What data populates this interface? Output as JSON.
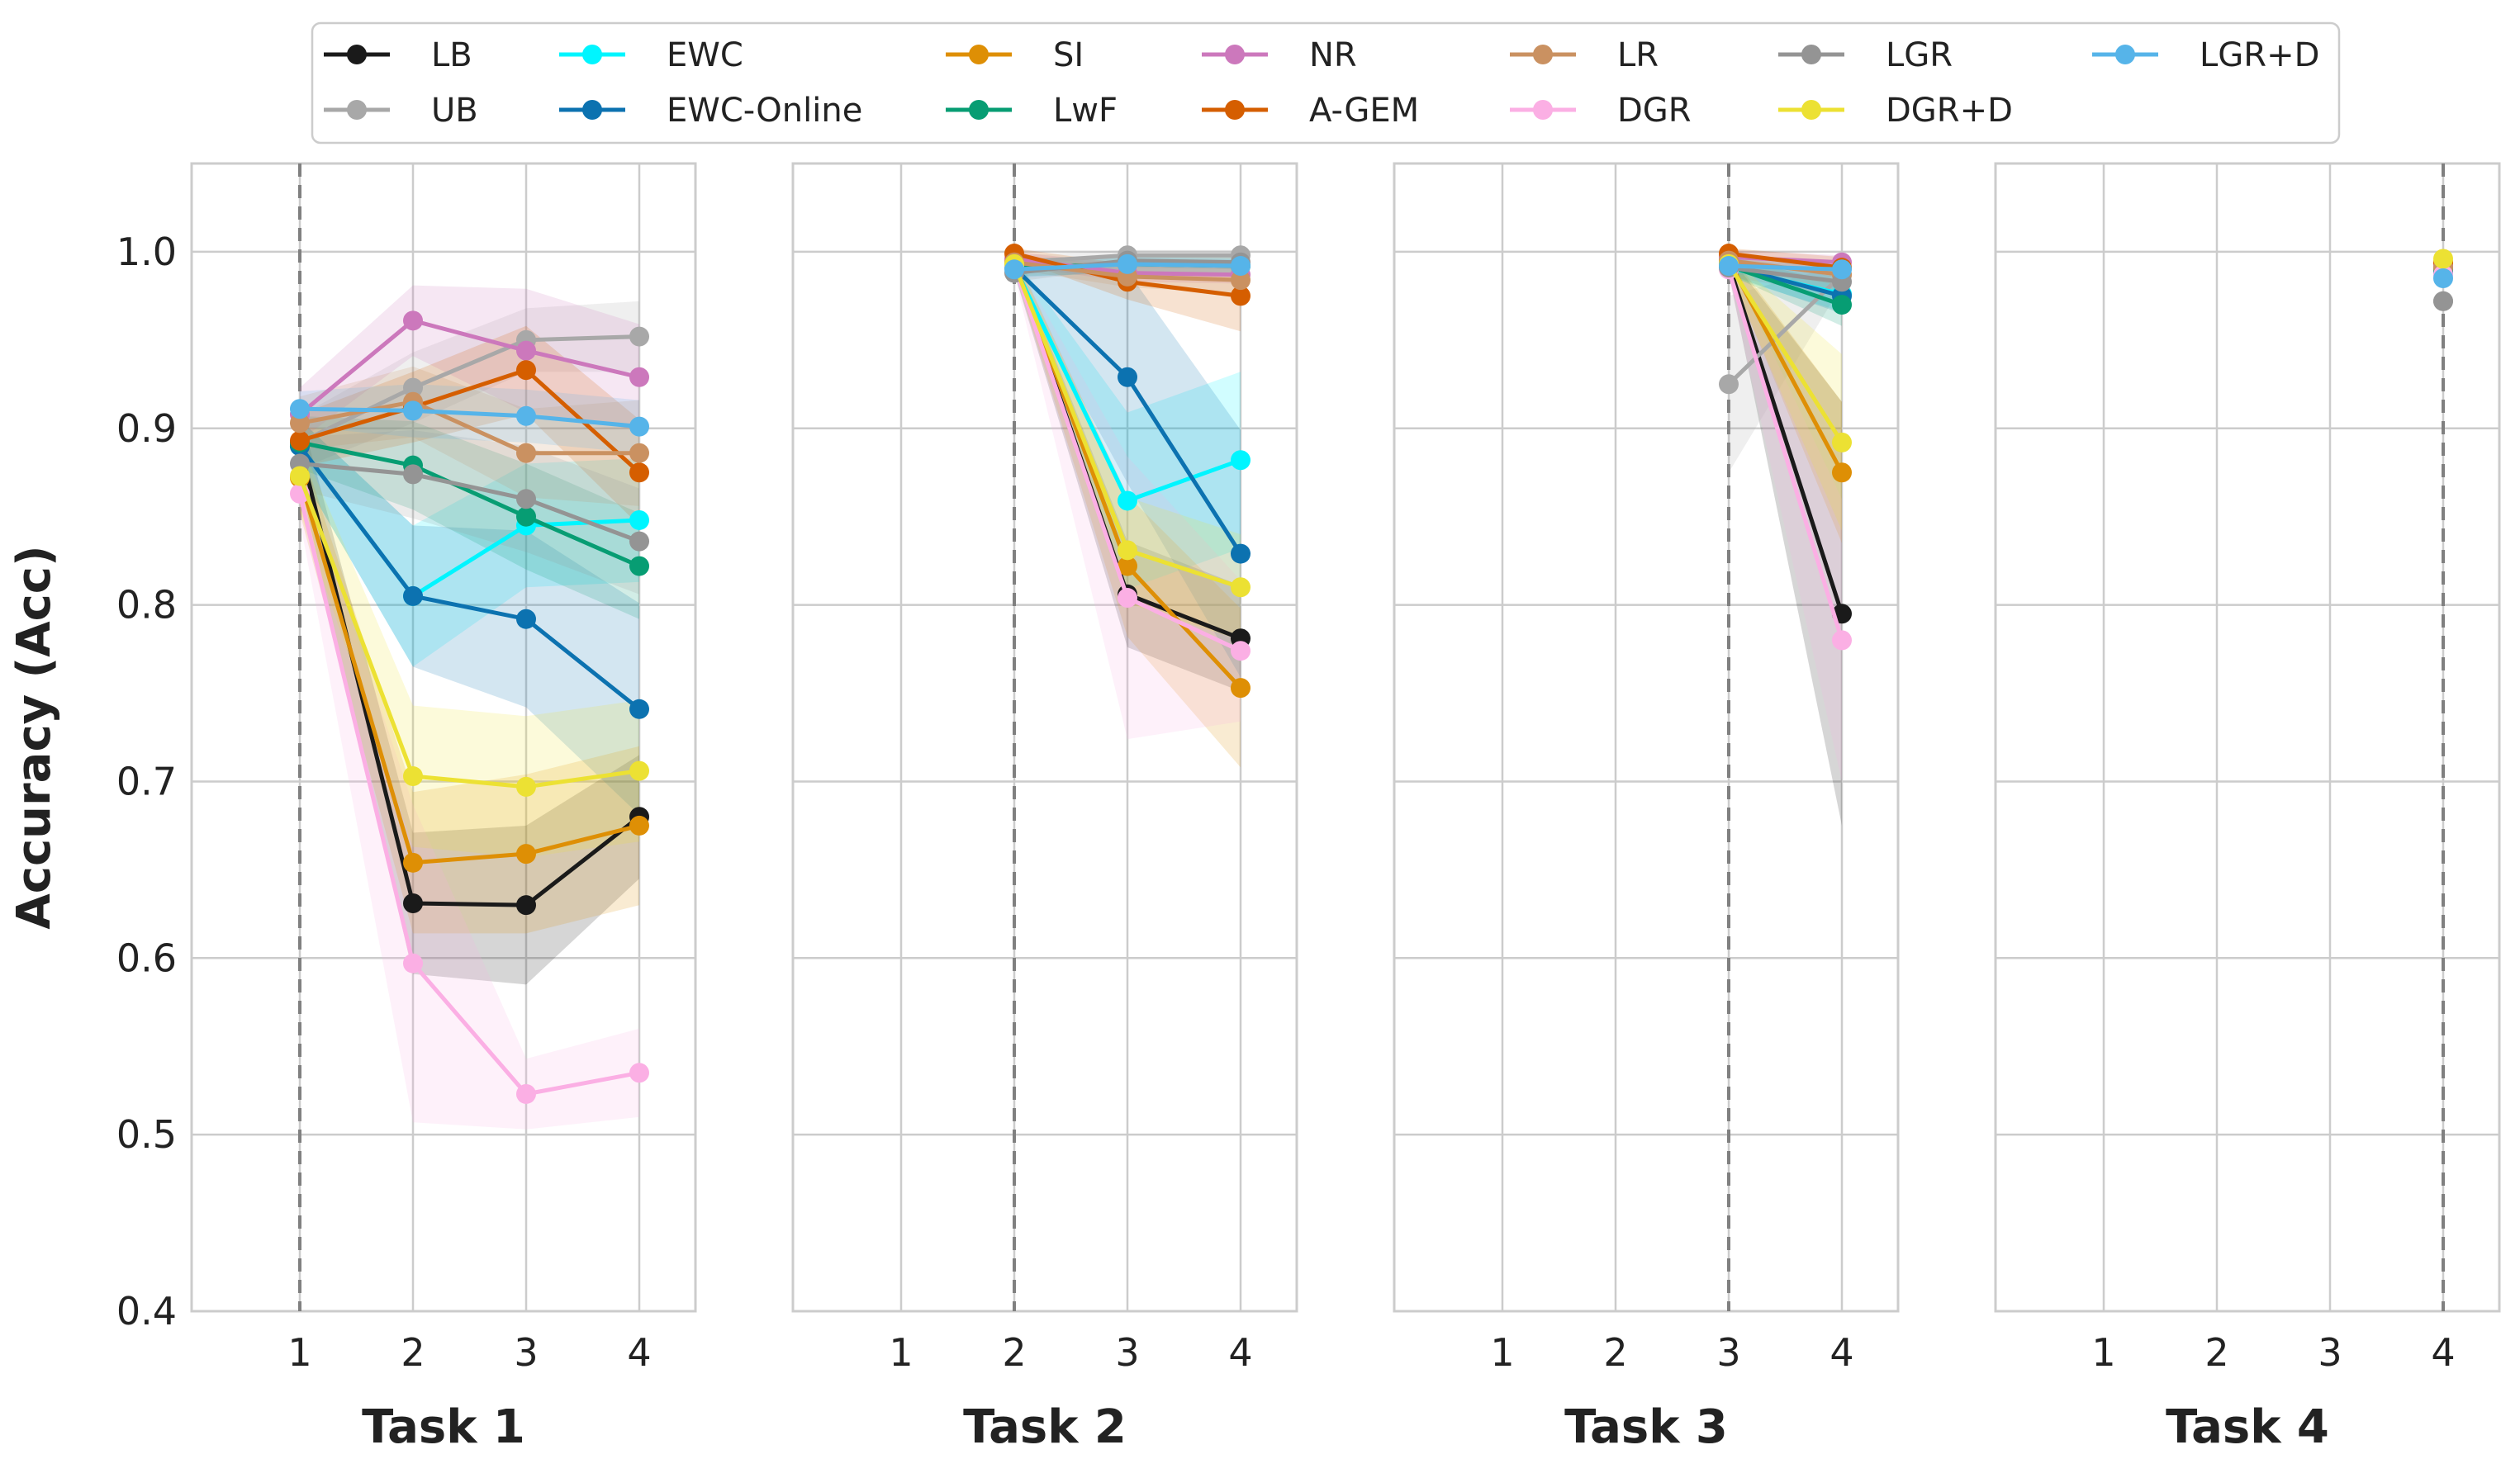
{
  "chart_data": {
    "type": "line",
    "ylabel": "Accuracy (Acc)",
    "ylim": [
      0.4,
      1.05
    ],
    "yticks": [
      "0.4",
      "0.5",
      "0.6",
      "0.7",
      "0.8",
      "0.9",
      "1.0"
    ],
    "xticks": [
      "1",
      "2",
      "3",
      "4"
    ],
    "grid": true,
    "legend_position": "top",
    "colors": {
      "LB": "#1a1a1a",
      "UB": "#a8a8a8",
      "EWC": "#00f5ff",
      "EWC-Online": "#0c72b0",
      "SI": "#de8f05",
      "LwF": "#079d73",
      "NR": "#cc78bc",
      "A-GEM": "#d55e00",
      "LR": "#ca9161",
      "DGR": "#fbafe4",
      "LGR": "#949494",
      "DGR+D": "#ece133",
      "LGR+D": "#56b4e9"
    },
    "method_order": [
      "LB",
      "UB",
      "EWC",
      "EWC-Online",
      "SI",
      "LwF",
      "NR",
      "A-GEM",
      "LR",
      "DGR",
      "LGR",
      "DGR+D",
      "LGR+D"
    ],
    "panels": [
      {
        "title": "Task 1",
        "start_task": 1,
        "series": [
          {
            "name": "LB",
            "values": [
              0.89,
              0.631,
              0.63,
              0.68
            ],
            "band": [
              0.02,
              0.04,
              0.045,
              0.035
            ]
          },
          {
            "name": "UB",
            "values": [
              0.892,
              0.923,
              0.95,
              0.952
            ],
            "band": [
              0.015,
              0.02,
              0.018,
              0.02
            ]
          },
          {
            "name": "EWC",
            "values": [
              0.89,
              0.805,
              0.845,
              0.848
            ],
            "band": [
              0.015,
              0.04,
              0.035,
              0.035
            ]
          },
          {
            "name": "EWC-Online",
            "values": [
              0.89,
              0.805,
              0.792,
              0.741
            ],
            "band": [
              0.015,
              0.04,
              0.05,
              0.06
            ]
          },
          {
            "name": "SI",
            "values": [
              0.872,
              0.654,
              0.659,
              0.675
            ],
            "band": [
              0.02,
              0.04,
              0.045,
              0.045
            ]
          },
          {
            "name": "LwF",
            "values": [
              0.892,
              0.879,
              0.85,
              0.822
            ],
            "band": [
              0.015,
              0.025,
              0.03,
              0.03
            ]
          },
          {
            "name": "NR",
            "values": [
              0.908,
              0.961,
              0.944,
              0.929
            ],
            "band": [
              0.015,
              0.02,
              0.035,
              0.03
            ]
          },
          {
            "name": "A-GEM",
            "values": [
              0.893,
              0.912,
              0.933,
              0.875
            ],
            "band": [
              0.015,
              0.02,
              0.025,
              0.03
            ]
          },
          {
            "name": "LR",
            "values": [
              0.903,
              0.915,
              0.886,
              0.886
            ],
            "band": [
              0.015,
              0.02,
              0.025,
              0.03
            ]
          },
          {
            "name": "DGR",
            "values": [
              0.863,
              0.597,
              0.523,
              0.535
            ],
            "band": [
              0.015,
              0.09,
              0.02,
              0.025
            ]
          },
          {
            "name": "LGR",
            "values": [
              0.88,
              0.874,
              0.86,
              0.836
            ],
            "band": [
              0.015,
              0.025,
              0.03,
              0.03
            ]
          },
          {
            "name": "DGR+D",
            "values": [
              0.873,
              0.703,
              0.697,
              0.706
            ],
            "band": [
              0.02,
              0.04,
              0.04,
              0.04
            ]
          },
          {
            "name": "LGR+D",
            "values": [
              0.911,
              0.91,
              0.907,
              0.901
            ],
            "band": [
              0.01,
              0.015,
              0.015,
              0.015
            ]
          }
        ]
      },
      {
        "title": "Task 2",
        "start_task": 2,
        "series": [
          {
            "name": "LB",
            "values": [
              0.993,
              0.806,
              0.781
            ],
            "band": [
              0.005,
              0.03,
              0.03
            ]
          },
          {
            "name": "UB",
            "values": [
              0.994,
              0.998,
              0.998
            ],
            "band": [
              0.004,
              0.003,
              0.003
            ]
          },
          {
            "name": "EWC",
            "values": [
              0.992,
              0.859,
              0.882
            ],
            "band": [
              0.005,
              0.05,
              0.05
            ]
          },
          {
            "name": "EWC-Online",
            "values": [
              0.991,
              0.929,
              0.829
            ],
            "band": [
              0.005,
              0.06,
              0.07
            ]
          },
          {
            "name": "SI",
            "values": [
              0.994,
              0.822,
              0.753
            ],
            "band": [
              0.005,
              0.04,
              0.045
            ]
          },
          {
            "name": "LwF",
            "values": [
              0.991,
              0.993,
              0.992
            ],
            "band": [
              0.005,
              0.005,
              0.005
            ]
          },
          {
            "name": "NR",
            "values": [
              0.996,
              0.988,
              0.987
            ],
            "band": [
              0.004,
              0.005,
              0.005
            ]
          },
          {
            "name": "A-GEM",
            "values": [
              0.999,
              0.983,
              0.975
            ],
            "band": [
              0.003,
              0.01,
              0.02
            ]
          },
          {
            "name": "LR",
            "values": [
              0.994,
              0.986,
              0.984
            ],
            "band": [
              0.004,
              0.006,
              0.008
            ]
          },
          {
            "name": "DGR",
            "values": [
              0.992,
              0.804,
              0.774
            ],
            "band": [
              0.005,
              0.08,
              0.04
            ]
          },
          {
            "name": "LGR",
            "values": [
              0.988,
              0.995,
              0.994
            ],
            "band": [
              0.005,
              0.004,
              0.004
            ]
          },
          {
            "name": "DGR+D",
            "values": [
              0.993,
              0.831,
              0.81
            ],
            "band": [
              0.005,
              0.03,
              0.03
            ]
          },
          {
            "name": "LGR+D",
            "values": [
              0.99,
              0.993,
              0.992
            ],
            "band": [
              0.005,
              0.004,
              0.004
            ]
          }
        ]
      },
      {
        "title": "Task 3",
        "start_task": 3,
        "series": [
          {
            "name": "LB",
            "values": [
              0.993,
              0.795
            ],
            "band": [
              0.005,
              0.12
            ]
          },
          {
            "name": "UB",
            "values": [
              0.925,
              0.987
            ],
            "band": [
              0.05,
              0.006
            ]
          },
          {
            "name": "EWC",
            "values": [
              0.991,
              0.976
            ],
            "band": [
              0.005,
              0.01
            ]
          },
          {
            "name": "EWC-Online",
            "values": [
              0.992,
              0.975
            ],
            "band": [
              0.005,
              0.01
            ]
          },
          {
            "name": "SI",
            "values": [
              0.995,
              0.875
            ],
            "band": [
              0.005,
              0.04
            ]
          },
          {
            "name": "LwF",
            "values": [
              0.992,
              0.97
            ],
            "band": [
              0.005,
              0.012
            ]
          },
          {
            "name": "NR",
            "values": [
              0.997,
              0.994
            ],
            "band": [
              0.004,
              0.004
            ]
          },
          {
            "name": "A-GEM",
            "values": [
              0.999,
              0.991
            ],
            "band": [
              0.003,
              0.006
            ]
          },
          {
            "name": "LR",
            "values": [
              0.995,
              0.987
            ],
            "band": [
              0.004,
              0.006
            ]
          },
          {
            "name": "DGR",
            "values": [
              0.99,
              0.78
            ],
            "band": [
              0.005,
              0.08
            ]
          },
          {
            "name": "LGR",
            "values": [
              0.991,
              0.983
            ],
            "band": [
              0.005,
              0.008
            ]
          },
          {
            "name": "DGR+D",
            "values": [
              0.993,
              0.892
            ],
            "band": [
              0.005,
              0.05
            ]
          },
          {
            "name": "LGR+D",
            "values": [
              0.992,
              0.99
            ],
            "band": [
              0.005,
              0.005
            ]
          }
        ]
      },
      {
        "title": "Task 4",
        "start_task": 4,
        "series": [
          {
            "name": "LB",
            "values": [
              0.99
            ],
            "band": [
              0
            ]
          },
          {
            "name": "UB",
            "values": [
              0.972
            ],
            "band": [
              0
            ]
          },
          {
            "name": "EWC",
            "values": [
              0.99
            ],
            "band": [
              0
            ]
          },
          {
            "name": "EWC-Online",
            "values": [
              0.988
            ],
            "band": [
              0
            ]
          },
          {
            "name": "SI",
            "values": [
              0.993
            ],
            "band": [
              0
            ]
          },
          {
            "name": "LwF",
            "values": [
              0.99
            ],
            "band": [
              0
            ]
          },
          {
            "name": "NR",
            "values": [
              0.992
            ],
            "band": [
              0
            ]
          },
          {
            "name": "A-GEM",
            "values": [
              0.994
            ],
            "band": [
              0
            ]
          },
          {
            "name": "LR",
            "values": [
              0.991
            ],
            "band": [
              0
            ]
          },
          {
            "name": "DGR",
            "values": [
              0.987
            ],
            "band": [
              0
            ]
          },
          {
            "name": "LGR",
            "values": [
              0.972
            ],
            "band": [
              0
            ]
          },
          {
            "name": "DGR+D",
            "values": [
              0.996
            ],
            "band": [
              0
            ]
          },
          {
            "name": "LGR+D",
            "values": [
              0.985
            ],
            "band": [
              0
            ]
          }
        ]
      }
    ]
  }
}
